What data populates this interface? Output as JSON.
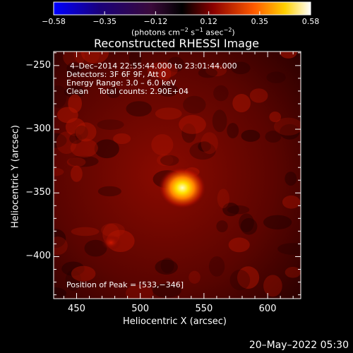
{
  "chart_data": {
    "type": "heatmap",
    "title": "Reconstructed RHESSI Image",
    "xlabel": "Heliocentric X (arcsec)",
    "ylabel": "Heliocentric Y (arcsec)",
    "xlim": [
      432,
      626
    ],
    "ylim": [
      -433,
      -239
    ],
    "x_ticks": [
      450,
      500,
      550,
      600
    ],
    "y_ticks": [
      -250,
      -300,
      -350,
      -400
    ],
    "x_tick_labels": [
      "450",
      "500",
      "550",
      "600"
    ],
    "y_tick_labels": [
      "−250",
      "−300",
      "−350",
      "−400"
    ],
    "colorbar": {
      "range": [
        -0.58,
        0.58
      ],
      "tick_values": [
        -0.58,
        -0.35,
        -0.12,
        0.12,
        0.35,
        0.58
      ],
      "tick_labels": [
        "−0.58",
        "−0.35",
        "−0.12",
        "0.12",
        "0.35",
        "0.58"
      ],
      "unit_main": "(photons cm",
      "unit_exp1": "−2",
      "unit_mid1": " s",
      "unit_exp2": "−1",
      "unit_mid2": " asec",
      "unit_exp3": "−2",
      "unit_end": ")"
    },
    "annotations": {
      "time_range": "4–Dec–2014 22:55:44.000 to 23:01:44.000",
      "detectors": "Detectors: 3F 6F 9F, Att 0",
      "energy": "Energy Range: 3.0 – 6.0 keV",
      "clean": "Clean    Total counts: 2.90E+04",
      "peak": "Position of Peak = [533,−346]"
    },
    "peak": {
      "x": 533,
      "y": -346,
      "value": 0.58
    },
    "secondary_source": {
      "x": 477,
      "y": -389
    },
    "footer_timestamp": "20–May–2022 05:30",
    "colors": {
      "background": "#000000",
      "text": "#ffffff"
    }
  }
}
